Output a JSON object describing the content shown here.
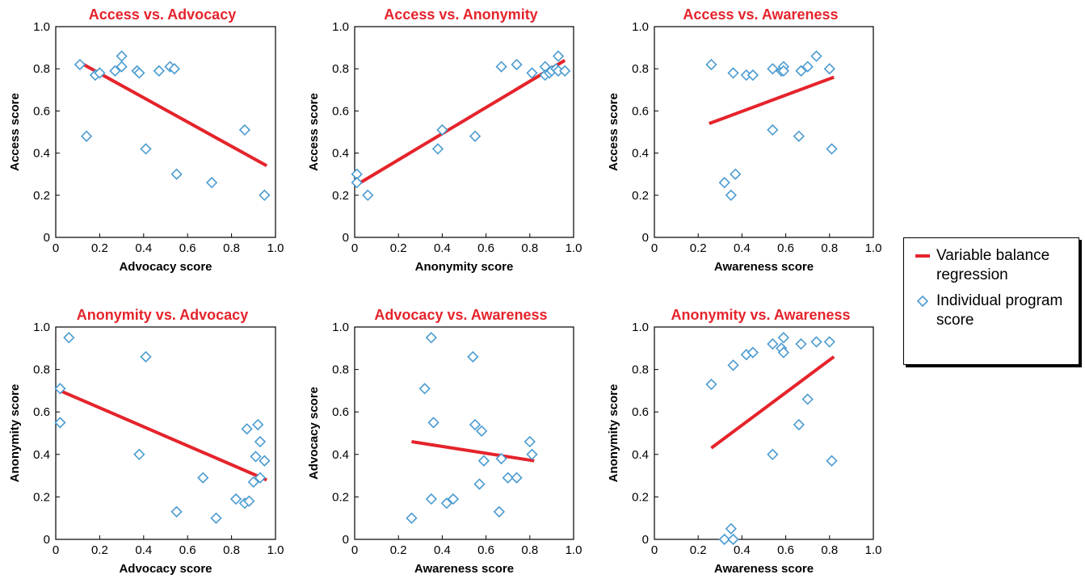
{
  "legend": {
    "regression_label": "Variable balance regression",
    "points_label": "Individual program score",
    "regression_color": "#e5232b",
    "points_color": "#4a9bd1"
  },
  "chart_data": [
    {
      "type": "scatter",
      "title": "Access vs. Advocacy",
      "xlabel": "Advocacy score",
      "ylabel": "Access score",
      "xlim": [
        0,
        1.0
      ],
      "ylim": [
        0,
        1.0
      ],
      "xticks": [
        "0",
        "0.2",
        "0.4",
        "0.6",
        "0.8",
        "1.0"
      ],
      "yticks": [
        "0",
        "0.2",
        "0.4",
        "0.6",
        "0.8",
        "1.0"
      ],
      "points": [
        [
          0.11,
          0.82
        ],
        [
          0.14,
          0.48
        ],
        [
          0.18,
          0.77
        ],
        [
          0.2,
          0.78
        ],
        [
          0.27,
          0.79
        ],
        [
          0.3,
          0.81
        ],
        [
          0.3,
          0.86
        ],
        [
          0.37,
          0.79
        ],
        [
          0.38,
          0.78
        ],
        [
          0.41,
          0.42
        ],
        [
          0.47,
          0.79
        ],
        [
          0.52,
          0.81
        ],
        [
          0.54,
          0.8
        ],
        [
          0.55,
          0.3
        ],
        [
          0.71,
          0.26
        ],
        [
          0.86,
          0.51
        ],
        [
          0.95,
          0.2
        ]
      ],
      "regression": [
        [
          0.11,
          0.83
        ],
        [
          0.96,
          0.34
        ]
      ]
    },
    {
      "type": "scatter",
      "title": "Access vs. Anonymity",
      "xlabel": "Anonymity score",
      "ylabel": "Access score",
      "xlim": [
        0,
        1.0
      ],
      "ylim": [
        0,
        1.0
      ],
      "xticks": [
        "0",
        "0.2",
        "0.4",
        "0.6",
        "0.8",
        "1.0"
      ],
      "yticks": [
        "0",
        "0.2",
        "0.4",
        "0.6",
        "0.8",
        "1.0"
      ],
      "points": [
        [
          0.01,
          0.3
        ],
        [
          0.01,
          0.26
        ],
        [
          0.06,
          0.2
        ],
        [
          0.38,
          0.42
        ],
        [
          0.4,
          0.51
        ],
        [
          0.55,
          0.48
        ],
        [
          0.67,
          0.81
        ],
        [
          0.74,
          0.82
        ],
        [
          0.81,
          0.78
        ],
        [
          0.87,
          0.81
        ],
        [
          0.87,
          0.77
        ],
        [
          0.89,
          0.78
        ],
        [
          0.9,
          0.79
        ],
        [
          0.92,
          0.8
        ],
        [
          0.93,
          0.86
        ],
        [
          0.93,
          0.79
        ],
        [
          0.96,
          0.79
        ]
      ],
      "regression": [
        [
          0.01,
          0.25
        ],
        [
          0.96,
          0.84
        ]
      ]
    },
    {
      "type": "scatter",
      "title": "Access vs. Awareness",
      "xlabel": "Awareness score",
      "ylabel": "Access score",
      "xlim": [
        0,
        1.0
      ],
      "ylim": [
        0,
        1.0
      ],
      "xticks": [
        "0",
        "0.2",
        "0.4",
        "0.6",
        "0.8",
        "1.0"
      ],
      "yticks": [
        "0",
        "0.2",
        "0.4",
        "0.6",
        "0.8",
        "1.0"
      ],
      "points": [
        [
          0.26,
          0.82
        ],
        [
          0.32,
          0.26
        ],
        [
          0.35,
          0.2
        ],
        [
          0.36,
          0.78
        ],
        [
          0.37,
          0.3
        ],
        [
          0.42,
          0.77
        ],
        [
          0.45,
          0.77
        ],
        [
          0.54,
          0.8
        ],
        [
          0.54,
          0.51
        ],
        [
          0.58,
          0.79
        ],
        [
          0.59,
          0.81
        ],
        [
          0.59,
          0.79
        ],
        [
          0.66,
          0.48
        ],
        [
          0.67,
          0.79
        ],
        [
          0.7,
          0.81
        ],
        [
          0.74,
          0.86
        ],
        [
          0.8,
          0.8
        ],
        [
          0.81,
          0.42
        ]
      ],
      "regression": [
        [
          0.25,
          0.54
        ],
        [
          0.82,
          0.76
        ]
      ]
    },
    {
      "type": "scatter",
      "title": "Anonymity vs. Advocacy",
      "xlabel": "Advocacy score",
      "ylabel": "Anonymity score",
      "xlim": [
        0,
        1.0
      ],
      "ylim": [
        0,
        1.0
      ],
      "xticks": [
        "0",
        "0.2",
        "0.4",
        "0.6",
        "0.8",
        "1.0"
      ],
      "yticks": [
        "0",
        "0.2",
        "0.4",
        "0.6",
        "0.8",
        "1.0"
      ],
      "points": [
        [
          0.02,
          0.71
        ],
        [
          0.02,
          0.55
        ],
        [
          0.06,
          0.95
        ],
        [
          0.38,
          0.4
        ],
        [
          0.41,
          0.86
        ],
        [
          0.55,
          0.13
        ],
        [
          0.67,
          0.29
        ],
        [
          0.73,
          0.1
        ],
        [
          0.82,
          0.19
        ],
        [
          0.86,
          0.17
        ],
        [
          0.87,
          0.52
        ],
        [
          0.88,
          0.18
        ],
        [
          0.9,
          0.27
        ],
        [
          0.91,
          0.39
        ],
        [
          0.92,
          0.54
        ],
        [
          0.93,
          0.46
        ],
        [
          0.93,
          0.29
        ],
        [
          0.95,
          0.37
        ]
      ],
      "regression": [
        [
          0.02,
          0.7
        ],
        [
          0.96,
          0.28
        ]
      ]
    },
    {
      "type": "scatter",
      "title": "Advocacy vs. Awareness",
      "xlabel": "Awareness score",
      "ylabel": "Advocacy score",
      "xlim": [
        0,
        1.0
      ],
      "ylim": [
        0,
        1.0
      ],
      "xticks": [
        "0",
        "0.2",
        "0.4",
        "0.6",
        "0.8",
        "1.0"
      ],
      "yticks": [
        "0",
        "0.2",
        "0.4",
        "0.6",
        "0.8",
        "1.0"
      ],
      "points": [
        [
          0.26,
          0.1
        ],
        [
          0.32,
          0.71
        ],
        [
          0.35,
          0.19
        ],
        [
          0.35,
          0.95
        ],
        [
          0.36,
          0.55
        ],
        [
          0.42,
          0.17
        ],
        [
          0.45,
          0.19
        ],
        [
          0.54,
          0.86
        ],
        [
          0.55,
          0.54
        ],
        [
          0.57,
          0.26
        ],
        [
          0.58,
          0.51
        ],
        [
          0.59,
          0.37
        ],
        [
          0.66,
          0.13
        ],
        [
          0.67,
          0.38
        ],
        [
          0.7,
          0.29
        ],
        [
          0.74,
          0.29
        ],
        [
          0.8,
          0.46
        ],
        [
          0.81,
          0.4
        ]
      ],
      "regression": [
        [
          0.26,
          0.46
        ],
        [
          0.82,
          0.37
        ]
      ]
    },
    {
      "type": "scatter",
      "title": "Anonymity vs. Awareness",
      "xlabel": "Awareness score",
      "ylabel": "Anonymity score",
      "xlim": [
        0,
        1.0
      ],
      "ylim": [
        0,
        1.0
      ],
      "xticks": [
        "0",
        "0.2",
        "0.4",
        "0.6",
        "0.8",
        "1.0"
      ],
      "yticks": [
        "0",
        "0.2",
        "0.4",
        "0.6",
        "0.8",
        "1.0"
      ],
      "points": [
        [
          0.26,
          0.73
        ],
        [
          0.32,
          0.0
        ],
        [
          0.35,
          0.05
        ],
        [
          0.36,
          0.82
        ],
        [
          0.36,
          0.0
        ],
        [
          0.42,
          0.87
        ],
        [
          0.45,
          0.88
        ],
        [
          0.54,
          0.92
        ],
        [
          0.54,
          0.4
        ],
        [
          0.58,
          0.9
        ],
        [
          0.59,
          0.88
        ],
        [
          0.59,
          0.95
        ],
        [
          0.66,
          0.54
        ],
        [
          0.67,
          0.92
        ],
        [
          0.7,
          0.66
        ],
        [
          0.74,
          0.93
        ],
        [
          0.8,
          0.93
        ],
        [
          0.81,
          0.37
        ]
      ],
      "regression": [
        [
          0.26,
          0.43
        ],
        [
          0.82,
          0.86
        ]
      ]
    }
  ]
}
